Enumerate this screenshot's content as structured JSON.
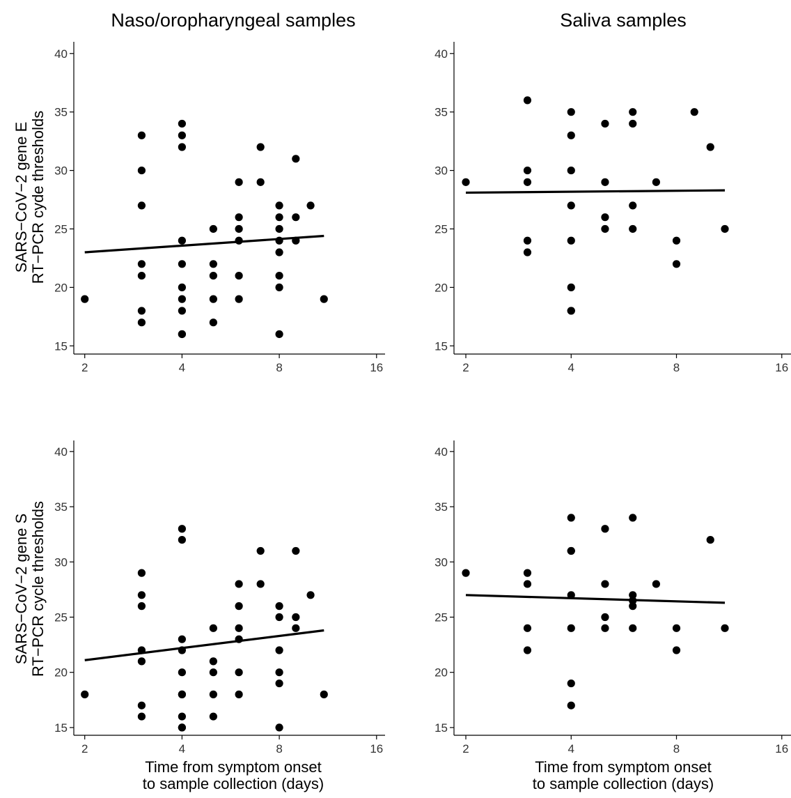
{
  "titles": {
    "col_left": "Naso/oropharyngeal samples",
    "col_right": "Saliva samples"
  },
  "ylabels": {
    "top_line1": "SARS−CoV−2 gene E",
    "top_line2": "RT−PCR cyde thresholds",
    "bottom_line1": "SARS−CoV−2 gene S",
    "bottom_line2": "RT−PCR cycle thresholds"
  },
  "xlabels": {
    "line1": "Time from symptom onset",
    "line2": "to sample collection (days)"
  },
  "chart_data": [
    {
      "type": "scatter",
      "panel": "top-left",
      "title": "Naso/oropharyngeal samples",
      "xscale": "log2",
      "xticks": [
        2,
        4,
        8,
        16
      ],
      "yticks": [
        15,
        20,
        25,
        30,
        35,
        40
      ],
      "xlim": [
        1.85,
        17
      ],
      "ylim": [
        14.3,
        41
      ],
      "x": [
        2,
        3,
        3,
        3,
        3,
        3,
        3,
        3,
        4,
        4,
        4,
        4,
        4,
        4,
        4,
        4,
        4,
        4,
        5,
        5,
        5,
        5,
        5,
        6,
        6,
        6,
        6,
        6,
        6,
        7,
        7,
        8,
        8,
        8,
        8,
        8,
        8,
        8,
        8,
        9,
        9,
        9,
        10,
        11
      ],
      "y": [
        19,
        33,
        30,
        27,
        22,
        21,
        18,
        17,
        34,
        33,
        32,
        24,
        22,
        20,
        19,
        18,
        16,
        16,
        25,
        22,
        21,
        19,
        17,
        29,
        26,
        25,
        24,
        21,
        19,
        32,
        29,
        27,
        26,
        25,
        23,
        21,
        20,
        16,
        24,
        31,
        26,
        24,
        27,
        19
      ],
      "trend": {
        "x": [
          2,
          11
        ],
        "y": [
          23.0,
          24.4
        ]
      }
    },
    {
      "type": "scatter",
      "panel": "top-right",
      "title": "Saliva samples",
      "xscale": "log2",
      "xticks": [
        2,
        4,
        8,
        16
      ],
      "yticks": [
        15,
        20,
        25,
        30,
        35,
        40
      ],
      "xlim": [
        1.85,
        17
      ],
      "ylim": [
        14.3,
        41
      ],
      "x": [
        2,
        3,
        3,
        3,
        3,
        3,
        4,
        4,
        4,
        4,
        4,
        4,
        4,
        4,
        5,
        5,
        5,
        5,
        6,
        6,
        6,
        6,
        7,
        8,
        8,
        9,
        10,
        11
      ],
      "y": [
        29,
        36,
        30,
        29,
        24,
        23,
        35,
        33,
        30,
        27,
        24,
        20,
        18,
        18,
        34,
        29,
        26,
        25,
        35,
        34,
        27,
        25,
        29,
        24,
        22,
        35,
        32,
        25
      ],
      "trend": {
        "x": [
          2,
          11
        ],
        "y": [
          28.1,
          28.3
        ]
      }
    },
    {
      "type": "scatter",
      "panel": "bottom-left",
      "title": "",
      "xscale": "log2",
      "xticks": [
        2,
        4,
        8,
        16
      ],
      "yticks": [
        15,
        20,
        25,
        30,
        35,
        40
      ],
      "xlim": [
        1.85,
        17
      ],
      "ylim": [
        14.3,
        41
      ],
      "x": [
        2,
        3,
        3,
        3,
        3,
        3,
        3,
        3,
        4,
        4,
        4,
        4,
        4,
        4,
        4,
        4,
        4,
        4,
        5,
        5,
        5,
        5,
        5,
        6,
        6,
        6,
        6,
        6,
        6,
        7,
        7,
        8,
        8,
        8,
        8,
        8,
        8,
        9,
        9,
        9,
        10,
        11
      ],
      "y": [
        18,
        29,
        27,
        26,
        22,
        21,
        17,
        16,
        33,
        32,
        23,
        22,
        20,
        18,
        18,
        16,
        15,
        15,
        24,
        21,
        20,
        18,
        16,
        28,
        26,
        24,
        23,
        20,
        18,
        31,
        28,
        26,
        25,
        22,
        20,
        19,
        15,
        31,
        25,
        24,
        27,
        18
      ],
      "trend": {
        "x": [
          2,
          11
        ],
        "y": [
          21.1,
          23.8
        ]
      }
    },
    {
      "type": "scatter",
      "panel": "bottom-right",
      "title": "",
      "xscale": "log2",
      "xticks": [
        2,
        4,
        8,
        16
      ],
      "yticks": [
        15,
        20,
        25,
        30,
        35,
        40
      ],
      "xlim": [
        1.85,
        17
      ],
      "ylim": [
        14.3,
        41
      ],
      "x": [
        2,
        3,
        3,
        3,
        3,
        4,
        4,
        4,
        4,
        4,
        4,
        4,
        5,
        5,
        5,
        5,
        6,
        6,
        6,
        6,
        6,
        7,
        8,
        8,
        10,
        11
      ],
      "y": [
        29,
        29,
        28,
        24,
        22,
        34,
        31,
        31,
        27,
        24,
        19,
        17,
        33,
        28,
        25,
        24,
        34,
        27,
        26,
        24,
        26.5,
        28,
        24,
        22,
        32,
        24
      ],
      "trend": {
        "x": [
          2,
          11
        ],
        "y": [
          27.0,
          26.3
        ]
      }
    }
  ]
}
